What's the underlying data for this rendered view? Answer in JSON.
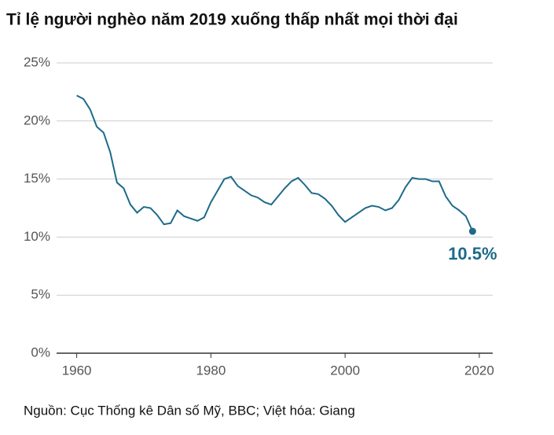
{
  "chart_data": {
    "type": "line",
    "title": "Tỉ lệ người nghèo năm 2019 xuống thấp nhất mọi thời đại",
    "source": "Nguồn: Cục Thống kê Dân số Mỹ, BBC; Việt hóa: Giang",
    "x": [
      1960,
      1961,
      1962,
      1963,
      1964,
      1965,
      1966,
      1967,
      1968,
      1969,
      1970,
      1971,
      1972,
      1973,
      1974,
      1975,
      1976,
      1977,
      1978,
      1979,
      1980,
      1981,
      1982,
      1983,
      1984,
      1985,
      1986,
      1987,
      1988,
      1989,
      1990,
      1991,
      1992,
      1993,
      1994,
      1995,
      1996,
      1997,
      1998,
      1999,
      2000,
      2001,
      2002,
      2003,
      2004,
      2005,
      2006,
      2007,
      2008,
      2009,
      2010,
      2011,
      2012,
      2013,
      2014,
      2015,
      2016,
      2017,
      2018,
      2019
    ],
    "series": [
      {
        "color": "#1d6a8a",
        "values": [
          22.2,
          21.9,
          21.0,
          19.5,
          19.0,
          17.3,
          14.7,
          14.2,
          12.8,
          12.1,
          12.6,
          12.5,
          11.9,
          11.1,
          11.2,
          12.3,
          11.8,
          11.6,
          11.4,
          11.7,
          13.0,
          14.0,
          15.0,
          15.2,
          14.4,
          14.0,
          13.6,
          13.4,
          13.0,
          12.8,
          13.5,
          14.2,
          14.8,
          15.1,
          14.5,
          13.8,
          13.7,
          13.3,
          12.7,
          11.9,
          11.3,
          11.7,
          12.1,
          12.5,
          12.7,
          12.6,
          12.3,
          12.5,
          13.2,
          14.3,
          15.1,
          15.0,
          15.0,
          14.8,
          14.8,
          13.5,
          12.7,
          12.3,
          11.8,
          10.5
        ],
        "value_labels": [
          null,
          null,
          null,
          null,
          null,
          null,
          null,
          null,
          null,
          null,
          null,
          null,
          null,
          null,
          null,
          null,
          null,
          null,
          null,
          null,
          null,
          null,
          null,
          null,
          null,
          null,
          null,
          null,
          null,
          null,
          null,
          null,
          null,
          null,
          null,
          null,
          null,
          null,
          null,
          null,
          null,
          null,
          null,
          null,
          null,
          null,
          null,
          null,
          null,
          null,
          null,
          null,
          null,
          null,
          null,
          null,
          null,
          null,
          null,
          "10.5%"
        ]
      }
    ],
    "xlim": [
      1957,
      2022
    ],
    "xticks": [
      1960,
      1980,
      2000,
      2020
    ],
    "ylim": [
      0,
      25
    ],
    "yticks": [
      {
        "value": 0,
        "label": "0%"
      },
      {
        "value": 5,
        "label": "5%"
      },
      {
        "value": 10,
        "label": "10%"
      },
      {
        "value": 15,
        "label": "15%"
      },
      {
        "value": 20,
        "label": "20%"
      },
      {
        "value": 25,
        "label": "25%"
      }
    ],
    "grid": true
  }
}
